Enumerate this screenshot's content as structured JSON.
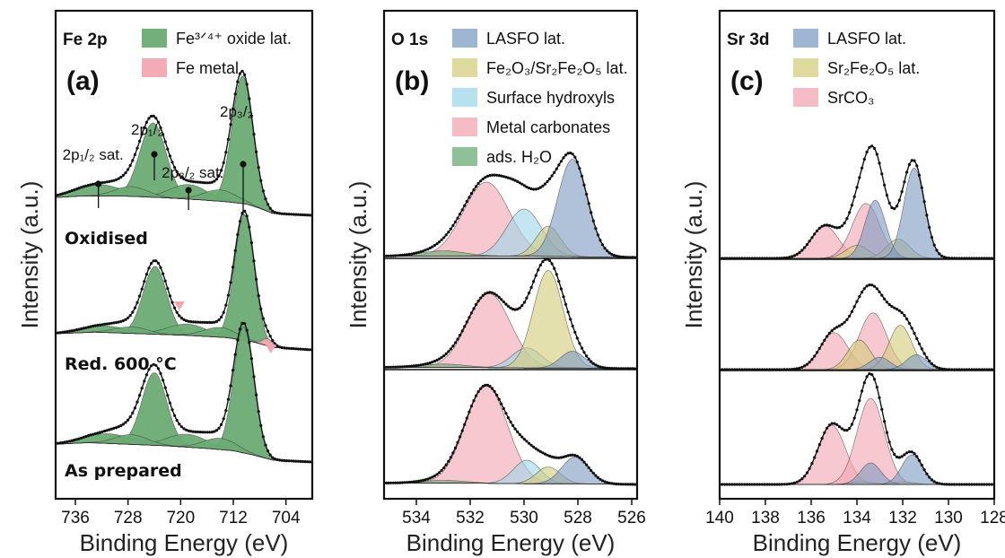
{
  "colors": {
    "green": "#6bab74",
    "pink": "#f2a6b1",
    "blue": "#7f9dc4",
    "olive": "#d4cd7c",
    "cyan": "#9fd7ea",
    "data": "#111111"
  },
  "panels": [
    {
      "id": "a",
      "letter": "(a)",
      "core": "Fe 2p",
      "xlabel": "Binding Energy (eV)",
      "ylabel": "Intensity (a.u.)",
      "xlim": [
        739,
        700
      ],
      "ticks": [
        736,
        728,
        720,
        712,
        704
      ],
      "legend": [
        {
          "label": "Fe³ᐟ⁴⁺ oxide lat.",
          "color": "green"
        },
        {
          "label": "Fe metal",
          "color": "pink"
        }
      ],
      "annotations": [
        {
          "label": "2p₁/₂ sat.",
          "x": 732.5
        },
        {
          "label": "2p₁/₂",
          "x": 724.0
        },
        {
          "label": "2p₃/₂ sat.",
          "x": 718.8
        },
        {
          "label": "2p₃/₂",
          "x": 710.5
        }
      ],
      "markers": [
        {
          "spectrum": 1,
          "x": 720.2
        },
        {
          "spectrum": 1,
          "x": 706.3
        }
      ],
      "spectra": [
        {
          "label": "Oxidised",
          "offset": 0.0,
          "baseline": [
            [
              739,
              0.55
            ],
            [
              735,
              0.6
            ],
            [
              729,
              0.6
            ],
            [
              723,
              0.55
            ],
            [
              717,
              0.48
            ],
            [
              713,
              0.42
            ],
            [
              710,
              0.35
            ],
            [
              708,
              0.22
            ],
            [
              706,
              0.06
            ],
            [
              700,
              0.0
            ]
          ],
          "peaks": [
            {
              "comp": "green",
              "center": 724.2,
              "amp": 2.3,
              "width": 2.0
            },
            {
              "comp": "green",
              "center": 710.6,
              "amp": 3.95,
              "width": 1.6
            },
            {
              "comp": "green",
              "center": 732.5,
              "amp": 0.35,
              "width": 3.5
            },
            {
              "comp": "green",
              "center": 718.8,
              "amp": 0.45,
              "width": 2.8
            },
            {
              "comp": "green",
              "center": 727.5,
              "amp": 0.3,
              "width": 2.5
            },
            {
              "comp": "green",
              "center": 714.0,
              "amp": 0.35,
              "width": 2.5
            }
          ]
        },
        {
          "label": "Red.  600 °C",
          "offset": 0.0,
          "baseline": [
            [
              739,
              0.5
            ],
            [
              733,
              0.55
            ],
            [
              726,
              0.5
            ],
            [
              719,
              0.45
            ],
            [
              713,
              0.38
            ],
            [
              709,
              0.25
            ],
            [
              706,
              0.08
            ],
            [
              700,
              0.0
            ]
          ],
          "peaks": [
            {
              "comp": "green",
              "center": 723.9,
              "amp": 2.1,
              "width": 1.8
            },
            {
              "comp": "green",
              "center": 710.3,
              "amp": 3.9,
              "width": 1.5
            },
            {
              "comp": "green",
              "center": 731.5,
              "amp": 0.2,
              "width": 3.5
            },
            {
              "comp": "green",
              "center": 719.0,
              "amp": 0.35,
              "width": 3.0
            },
            {
              "comp": "green",
              "center": 714.0,
              "amp": 0.3,
              "width": 2.5
            },
            {
              "comp": "green",
              "center": 727.5,
              "amp": 0.2,
              "width": 2.5
            },
            {
              "comp": "pink",
              "center": 706.8,
              "amp": 0.22,
              "width": 0.8
            }
          ]
        },
        {
          "label": "As prepared",
          "offset": 0.0,
          "baseline": [
            [
              739,
              0.55
            ],
            [
              734,
              0.6
            ],
            [
              728,
              0.55
            ],
            [
              722,
              0.5
            ],
            [
              716,
              0.42
            ],
            [
              712,
              0.35
            ],
            [
              709,
              0.22
            ],
            [
              706,
              0.06
            ],
            [
              700,
              0.0
            ]
          ],
          "peaks": [
            {
              "comp": "green",
              "center": 724.0,
              "amp": 2.25,
              "width": 1.9
            },
            {
              "comp": "green",
              "center": 710.4,
              "amp": 3.9,
              "width": 1.55
            },
            {
              "comp": "green",
              "center": 731.0,
              "amp": 0.3,
              "width": 3.5
            },
            {
              "comp": "green",
              "center": 719.0,
              "amp": 0.4,
              "width": 3.0
            },
            {
              "comp": "green",
              "center": 714.0,
              "amp": 0.35,
              "width": 2.5
            },
            {
              "comp": "green",
              "center": 727.5,
              "amp": 0.3,
              "width": 2.5
            }
          ]
        }
      ]
    },
    {
      "id": "b",
      "letter": "(b)",
      "core": "O 1s",
      "xlabel": "Binding Energy (eV)",
      "ylabel": "Intensity (a.u.)",
      "xlim": [
        535.2,
        525.8
      ],
      "ticks": [
        534,
        532,
        530,
        528,
        526
      ],
      "legend": [
        {
          "label": "LASFO lat.",
          "color": "blue"
        },
        {
          "label": "Fe₂O₃/Sr₂Fe₂O₅ lat.",
          "color": "olive"
        },
        {
          "label": "Surface hydroxyls",
          "color": "cyan"
        },
        {
          "label": "Metal carbonates",
          "color": "pink"
        },
        {
          "label": "ads. H₂O",
          "color": "green"
        }
      ],
      "spectra": [
        {
          "offset": 0.0,
          "baseline": [
            [
              535.2,
              0.02
            ],
            [
              534,
              0.02
            ],
            [
              532,
              0.02
            ],
            [
              530,
              0.02
            ],
            [
              528,
              0.01
            ],
            [
              525.8,
              0.0
            ]
          ],
          "peaks": [
            {
              "comp": "pink",
              "center": 531.4,
              "amp": 1.1,
              "width": 0.85
            },
            {
              "comp": "cyan",
              "center": 530.0,
              "amp": 0.7,
              "width": 0.65
            },
            {
              "comp": "olive",
              "center": 529.1,
              "amp": 0.45,
              "width": 0.45
            },
            {
              "comp": "blue",
              "center": 528.2,
              "amp": 1.45,
              "width": 0.55
            },
            {
              "comp": "green",
              "center": 533.0,
              "amp": 0.08,
              "width": 0.8
            }
          ]
        },
        {
          "offset": 0.0,
          "baseline": [
            [
              535.2,
              0.02
            ],
            [
              534,
              0.02
            ],
            [
              532,
              0.02
            ],
            [
              530,
              0.01
            ],
            [
              528,
              0.01
            ],
            [
              525.8,
              0.0
            ]
          ],
          "peaks": [
            {
              "comp": "pink",
              "center": 531.3,
              "amp": 1.1,
              "width": 0.8
            },
            {
              "comp": "cyan",
              "center": 529.9,
              "amp": 0.3,
              "width": 0.55
            },
            {
              "comp": "olive",
              "center": 529.1,
              "amp": 1.45,
              "width": 0.55
            },
            {
              "comp": "blue",
              "center": 528.2,
              "amp": 0.25,
              "width": 0.45
            },
            {
              "comp": "green",
              "center": 533.0,
              "amp": 0.05,
              "width": 0.8
            }
          ]
        },
        {
          "offset": 0.0,
          "baseline": [
            [
              535.2,
              0.02
            ],
            [
              534,
              0.02
            ],
            [
              532,
              0.02
            ],
            [
              530,
              0.01
            ],
            [
              528,
              0.01
            ],
            [
              525.8,
              0.0
            ]
          ],
          "peaks": [
            {
              "comp": "pink",
              "center": 531.4,
              "amp": 1.45,
              "width": 0.78
            },
            {
              "comp": "cyan",
              "center": 529.9,
              "amp": 0.35,
              "width": 0.5
            },
            {
              "comp": "olive",
              "center": 529.1,
              "amp": 0.25,
              "width": 0.45
            },
            {
              "comp": "blue",
              "center": 528.1,
              "amp": 0.4,
              "width": 0.5
            },
            {
              "comp": "green",
              "center": 533.0,
              "amp": 0.04,
              "width": 0.8
            }
          ]
        }
      ]
    },
    {
      "id": "c",
      "letter": "(c)",
      "core": "Sr 3d",
      "xlabel": "Binding Energy (eV)",
      "ylabel": "Intensity (a.u.)",
      "xlim": [
        140,
        128
      ],
      "ticks": [
        140,
        138,
        136,
        134,
        132,
        130,
        128
      ],
      "legend": [
        {
          "label": "LASFO lat.",
          "color": "blue"
        },
        {
          "label": "Sr₂Fe₂O₅ lat.",
          "color": "olive"
        },
        {
          "label": "SrCO₃",
          "color": "pink"
        }
      ],
      "spectra": [
        {
          "offset": 0.0,
          "baseline": [
            [
              140,
              0.0
            ],
            [
              128,
              0.0
            ]
          ],
          "peaks": [
            {
              "comp": "pink",
              "center": 135.4,
              "amp": 0.5,
              "width": 0.6
            },
            {
              "comp": "pink",
              "center": 133.6,
              "amp": 0.85,
              "width": 0.6
            },
            {
              "comp": "olive",
              "center": 134.0,
              "amp": 0.2,
              "width": 0.5
            },
            {
              "comp": "olive",
              "center": 132.2,
              "amp": 0.3,
              "width": 0.5
            },
            {
              "comp": "blue",
              "center": 133.2,
              "amp": 0.9,
              "width": 0.45
            },
            {
              "comp": "blue",
              "center": 131.5,
              "amp": 1.4,
              "width": 0.45
            }
          ]
        },
        {
          "offset": 0.0,
          "baseline": [
            [
              140,
              0.0
            ],
            [
              128,
              0.0
            ]
          ],
          "peaks": [
            {
              "comp": "pink",
              "center": 135.0,
              "amp": 0.75,
              "width": 0.6
            },
            {
              "comp": "pink",
              "center": 133.3,
              "amp": 1.15,
              "width": 0.6
            },
            {
              "comp": "olive",
              "center": 133.9,
              "amp": 0.6,
              "width": 0.5
            },
            {
              "comp": "olive",
              "center": 132.1,
              "amp": 0.9,
              "width": 0.5
            },
            {
              "comp": "blue",
              "center": 133.0,
              "amp": 0.25,
              "width": 0.45
            },
            {
              "comp": "blue",
              "center": 131.4,
              "amp": 0.3,
              "width": 0.45
            }
          ]
        },
        {
          "offset": 0.0,
          "baseline": [
            [
              140,
              0.0
            ],
            [
              128,
              0.0
            ]
          ],
          "peaks": [
            {
              "comp": "pink",
              "center": 135.1,
              "amp": 1.1,
              "width": 0.6
            },
            {
              "comp": "pink",
              "center": 133.4,
              "amp": 1.6,
              "width": 0.6
            },
            {
              "comp": "olive",
              "center": 133.8,
              "amp": 0.05,
              "width": 0.5
            },
            {
              "comp": "olive",
              "center": 132.0,
              "amp": 0.05,
              "width": 0.5
            },
            {
              "comp": "blue",
              "center": 133.4,
              "amp": 0.4,
              "width": 0.45
            },
            {
              "comp": "blue",
              "center": 131.6,
              "amp": 0.55,
              "width": 0.45
            }
          ]
        }
      ]
    }
  ],
  "chart_data": [
    {
      "type": "area",
      "title": "Fe 2p",
      "panel": "(a)",
      "xlabel": "Binding Energy (eV)",
      "ylabel": "Intensity (a.u.)",
      "xlim": [
        739,
        700
      ],
      "xticks": [
        736,
        728,
        720,
        712,
        704
      ],
      "x_reversed": true,
      "series": [
        {
          "name": "Fe³ᐟ⁴⁺ oxide lat.",
          "peaks_eV": [
            732.5,
            724.0,
            718.8,
            710.5
          ]
        },
        {
          "name": "Fe metal",
          "peaks_eV": [
            706.8
          ]
        }
      ],
      "spectra": [
        "Oxidised",
        "Red.  600 °C",
        "As prepared"
      ]
    },
    {
      "type": "area",
      "title": "O 1s",
      "panel": "(b)",
      "xlabel": "Binding Energy (eV)",
      "ylabel": "Intensity (a.u.)",
      "xlim": [
        535.2,
        525.8
      ],
      "xticks": [
        534,
        532,
        530,
        528,
        526
      ],
      "x_reversed": true,
      "series": [
        {
          "name": "LASFO lat.",
          "peaks_eV": [
            528.2
          ]
        },
        {
          "name": "Fe₂O₃/Sr₂Fe₂O₅ lat.",
          "peaks_eV": [
            529.1
          ]
        },
        {
          "name": "Surface hydroxyls",
          "peaks_eV": [
            530.0
          ]
        },
        {
          "name": "Metal carbonates",
          "peaks_eV": [
            531.4
          ]
        },
        {
          "name": "ads. H₂O",
          "peaks_eV": [
            533.0
          ]
        }
      ]
    },
    {
      "type": "area",
      "title": "Sr 3d",
      "panel": "(c)",
      "xlabel": "Binding Energy (eV)",
      "ylabel": "Intensity (a.u.)",
      "xlim": [
        140,
        128
      ],
      "xticks": [
        140,
        138,
        136,
        134,
        132,
        130,
        128
      ],
      "x_reversed": true,
      "series": [
        {
          "name": "LASFO lat.",
          "peaks_eV": [
            133.2,
            131.5
          ]
        },
        {
          "name": "Sr₂Fe₂O₅ lat.",
          "peaks_eV": [
            134.0,
            132.2
          ]
        },
        {
          "name": "SrCO₃",
          "peaks_eV": [
            135.4,
            133.6
          ]
        }
      ]
    }
  ]
}
